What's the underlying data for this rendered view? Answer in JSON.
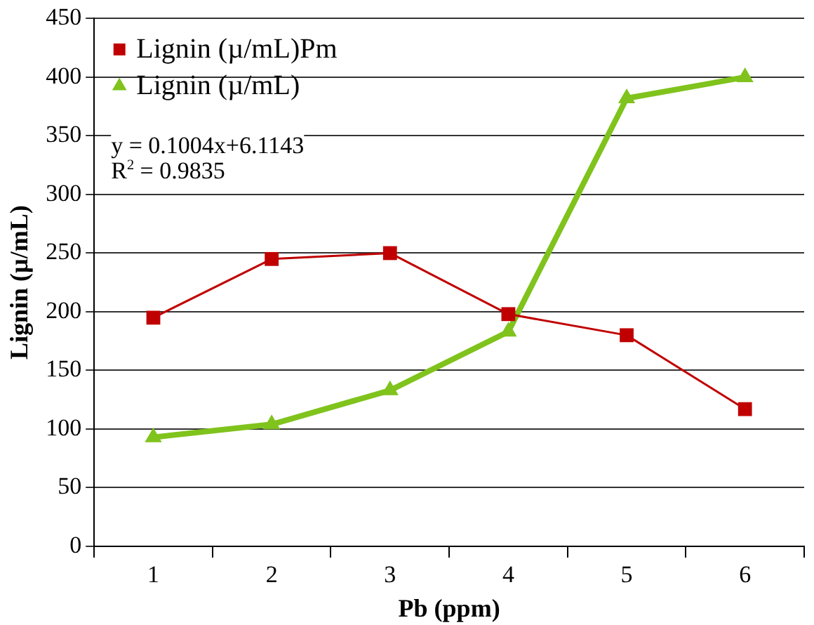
{
  "chart_data": {
    "type": "line",
    "xlabel": "Pb (ppm)",
    "ylabel": "Lignin (µ/mL)",
    "categories": [
      "1",
      "2",
      "3",
      "4",
      "5",
      "6"
    ],
    "series": [
      {
        "name": "Lignin (µ/mL)Pm",
        "color": "#c00000",
        "marker": "square",
        "values": [
          195,
          245,
          250,
          198,
          180,
          117
        ]
      },
      {
        "name": "Lignin (µ/mL)",
        "color": "#7fc31c",
        "marker": "triangle",
        "values": [
          93,
          104,
          133,
          183,
          382,
          400
        ]
      }
    ],
    "ylim": [
      0,
      450
    ],
    "yticks": [
      0,
      50,
      100,
      150,
      200,
      250,
      300,
      350,
      400,
      450
    ],
    "grid": "y",
    "legend": "top left",
    "annotations": [
      "y = 0.1004x+6.1143",
      "R$^{2}$ = 0.9835"
    ]
  }
}
